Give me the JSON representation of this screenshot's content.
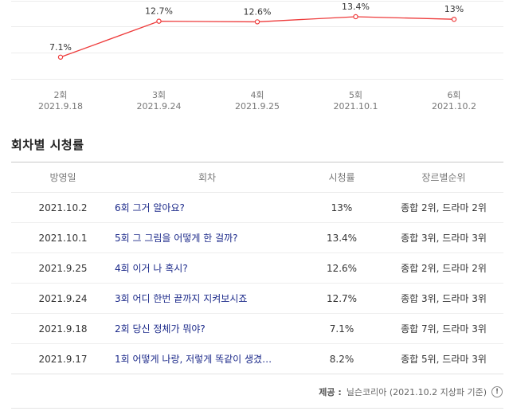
{
  "chart_data": {
    "type": "line",
    "categories": [
      {
        "episode": "2회",
        "date": "2021.9.18"
      },
      {
        "episode": "3회",
        "date": "2021.9.24"
      },
      {
        "episode": "4회",
        "date": "2021.9.25"
      },
      {
        "episode": "5회",
        "date": "2021.10.1"
      },
      {
        "episode": "6회",
        "date": "2021.10.2"
      }
    ],
    "values": [
      7.1,
      12.7,
      12.6,
      13.4,
      13
    ],
    "value_labels": [
      "7.1%",
      "12.7%",
      "12.6%",
      "13.4%",
      "13%"
    ],
    "ylim": [
      3.6,
      16.0
    ],
    "grid": true,
    "line_color": "#ee3b3b"
  },
  "section_title": "회차별 시청률",
  "table": {
    "headers": {
      "date": "방영일",
      "episode": "회차",
      "rating": "시청률",
      "rank": "장르별순위"
    },
    "rows": [
      {
        "date": "2021.10.2",
        "title": "6회 그거 알아요?",
        "rating": "13%",
        "rank": "종합 2위, 드라마 2위"
      },
      {
        "date": "2021.10.1",
        "title": "5회 그 그림을 어떻게 한 걸까?",
        "rating": "13.4%",
        "rank": "종합 3위, 드라마 3위"
      },
      {
        "date": "2021.9.25",
        "title": "4회 이거 나 혹시?",
        "rating": "12.6%",
        "rank": "종합 2위, 드라마 2위"
      },
      {
        "date": "2021.9.24",
        "title": "3회 어디 한번 끝까지 지켜보시죠",
        "rating": "12.7%",
        "rank": "종합 3위, 드라마 3위"
      },
      {
        "date": "2021.9.18",
        "title": "2회 당신 정체가 뭐야?",
        "rating": "7.1%",
        "rank": "종합 7위, 드라마 3위"
      },
      {
        "date": "2021.9.17",
        "title": "1회 어떻게 나랑, 저렇게 똑같이 생겼…",
        "rating": "8.2%",
        "rank": "종합 5위, 드라마 3위"
      }
    ]
  },
  "provider": {
    "label": "제공 :",
    "source": "닐슨코리아 (2021.10.2 지상파 기준)",
    "info_icon": "info-icon",
    "info_glyph": "!"
  }
}
